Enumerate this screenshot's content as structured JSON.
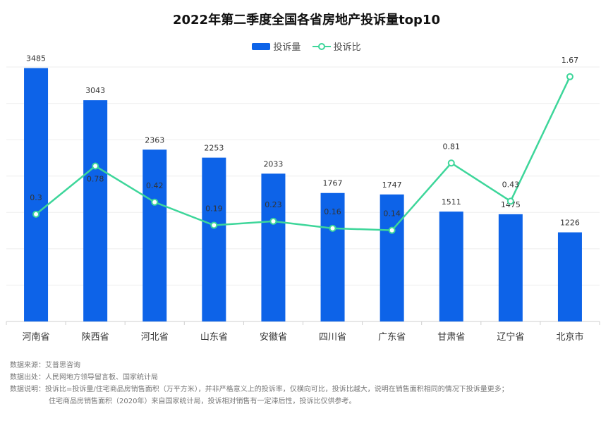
{
  "chart_data": {
    "type": "bar",
    "title": "2022年第二季度全国各省房地产投诉量top10",
    "categories": [
      "河南省",
      "陕西省",
      "河北省",
      "山东省",
      "安徽省",
      "四川省",
      "广东省",
      "甘肃省",
      "辽宁省",
      "北京市"
    ],
    "series": [
      {
        "name": "投诉量",
        "type": "bar",
        "values": [
          3485,
          3043,
          2363,
          2253,
          2033,
          1767,
          1747,
          1511,
          1475,
          1226
        ],
        "color": "#0d63e8"
      },
      {
        "name": "投诉比",
        "type": "line",
        "values": [
          0.3,
          0.78,
          0.42,
          0.19,
          0.23,
          0.16,
          0.14,
          0.81,
          0.43,
          1.67
        ],
        "labels": [
          "0.3",
          "0.78",
          "0.42",
          "0.19",
          "0.23",
          "0.16",
          "0.14",
          "0.81",
          "0.43",
          "1.67"
        ],
        "color": "#3dd69a"
      }
    ],
    "ylim_bar": [
      0,
      3500
    ],
    "ylim_line": [
      0,
      2.0
    ],
    "grid": true,
    "legend_position": "top-center"
  },
  "notes": {
    "source_label": "数据来源：",
    "source_value": "艾普思咨询",
    "origin_label": "数据出处：",
    "origin_value": "人民网地方领导留言板、国家统计局",
    "desc_label": "数据说明：",
    "desc_line1": "投诉比=投诉量/住宅商品房销售面积（万平方米），并非严格意义上的投诉率，仅横向可比，投诉比越大，说明在销售面积相同的情况下投诉量更多；",
    "desc_line2": "住宅商品房销售面积（2020年）来自国家统计局，投诉相对销售有一定滞后性，投诉比仅供参考。"
  }
}
